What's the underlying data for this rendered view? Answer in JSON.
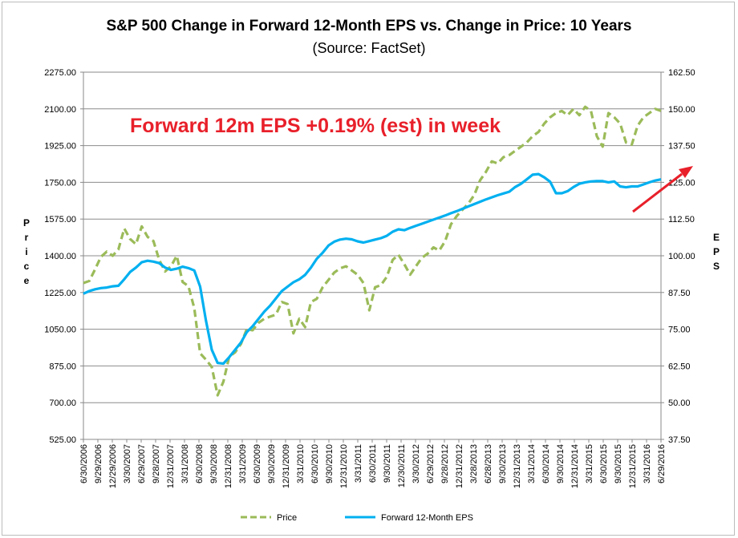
{
  "chart_data": {
    "type": "line",
    "title": "S&P 500 Change in Forward 12-Month EPS vs. Change in Price: 10 Years",
    "subtitle": "(Source: FactSet)",
    "annotation": "Forward 12m EPS +0.19% (est) in week",
    "ylabel_left": "Price",
    "ylabel_right": "EPS",
    "ylim_left": [
      525,
      2275
    ],
    "ylim_right": [
      37.5,
      162.5
    ],
    "yticks_left": [
      "2275.00",
      "2100.00",
      "1925.00",
      "1750.00",
      "1575.00",
      "1400.00",
      "1225.00",
      "1050.00",
      "875.00",
      "700.00",
      "525.00"
    ],
    "yticks_right": [
      "162.50",
      "150.00",
      "137.50",
      "125.00",
      "112.50",
      "100.00",
      "87.50",
      "75.00",
      "62.50",
      "50.00",
      "37.50"
    ],
    "xticks": [
      "6/30/2006",
      "9/29/2006",
      "12/29/2006",
      "3/30/2007",
      "6/29/2007",
      "9/28/2007",
      "12/31/2007",
      "3/31/2008",
      "6/30/2008",
      "9/30/2008",
      "12/31/2008",
      "3/31/2009",
      "6/30/2009",
      "9/30/2009",
      "12/31/2009",
      "3/31/2010",
      "6/30/2010",
      "9/30/2010",
      "12/31/2010",
      "3/31/2011",
      "6/30/2011",
      "9/30/2011",
      "12/30/2011",
      "3/30/2012",
      "6/29/2012",
      "9/28/2012",
      "12/31/2012",
      "3/28/2013",
      "6/28/2013",
      "9/30/2013",
      "12/31/2013",
      "3/31/2014",
      "6/30/2014",
      "9/30/2014",
      "12/31/2014",
      "3/31/2015",
      "6/30/2015",
      "9/30/2015",
      "12/31/2015",
      "3/31/2016",
      "6/29/2016"
    ],
    "grid": true,
    "legend_position": "bottom",
    "series": [
      {
        "name": "Price",
        "axis": "left",
        "color": "#9bbb59",
        "style": "dashed",
        "values": [
          1270,
          1280,
          1335,
          1395,
          1420,
          1400,
          1430,
          1530,
          1480,
          1455,
          1540,
          1490,
          1470,
          1380,
          1325,
          1350,
          1400,
          1275,
          1255,
          1150,
          935,
          905,
          870,
          735,
          800,
          920,
          940,
          980,
          1050,
          1045,
          1080,
          1100,
          1110,
          1120,
          1180,
          1170,
          1030,
          1100,
          1060,
          1180,
          1195,
          1250,
          1285,
          1320,
          1340,
          1350,
          1330,
          1310,
          1270,
          1140,
          1250,
          1260,
          1300,
          1380,
          1405,
          1360,
          1310,
          1350,
          1390,
          1410,
          1440,
          1425,
          1470,
          1550,
          1590,
          1620,
          1650,
          1690,
          1760,
          1800,
          1850,
          1840,
          1870,
          1880,
          1900,
          1920,
          1940,
          1970,
          1990,
          2030,
          2060,
          2080,
          2090,
          2070,
          2100,
          2070,
          2110,
          2090,
          1970,
          1920,
          2080,
          2060,
          2030,
          1940,
          1930,
          2020,
          2060,
          2080,
          2100,
          2090
        ]
      },
      {
        "name": "Forward 12-Month EPS",
        "axis": "right",
        "color": "#00b0f0",
        "style": "solid",
        "values": [
          87.1,
          88.0,
          88.6,
          89.0,
          89.2,
          89.6,
          89.8,
          92.0,
          94.5,
          96.0,
          97.8,
          98.3,
          98.0,
          97.5,
          96.0,
          95.2,
          95.6,
          96.3,
          95.8,
          95.0,
          89.5,
          78.0,
          68.0,
          63.5,
          63.3,
          65.5,
          68.0,
          70.5,
          74.0,
          76.0,
          78.5,
          81.0,
          83.0,
          85.5,
          88.0,
          89.5,
          91.0,
          92.0,
          93.5,
          96.0,
          99.0,
          101.0,
          103.5,
          104.8,
          105.5,
          105.8,
          105.6,
          104.9,
          104.5,
          105.0,
          105.5,
          106.0,
          106.8,
          108.2,
          109.0,
          108.7,
          109.5,
          110.2,
          110.9,
          111.6,
          112.3,
          113.0,
          113.7,
          114.5,
          115.2,
          116.0,
          116.8,
          117.6,
          118.4,
          119.2,
          119.9,
          120.6,
          121.2,
          121.8,
          123.4,
          124.5,
          126.0,
          127.6,
          127.8,
          126.7,
          125.2,
          121.3,
          121.3,
          122.0,
          123.4,
          124.5,
          125.0,
          125.3,
          125.4,
          125.4,
          125.0,
          125.3,
          123.6,
          123.3,
          123.6,
          123.6,
          124.3,
          125.0,
          125.6,
          126.0
        ]
      }
    ]
  }
}
